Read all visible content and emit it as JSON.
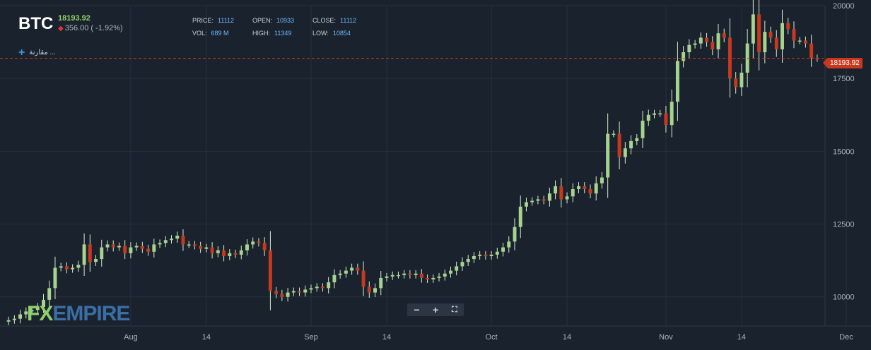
{
  "header": {
    "symbol": "BTC",
    "last_price": "18193.92",
    "change": "356.00 ( -1.92%)",
    "compare_label": "مقارنة ..."
  },
  "stats": [
    {
      "key": "PRICE:",
      "value": "11112"
    },
    {
      "key": "OPEN:",
      "value": "10933"
    },
    {
      "key": "CLOSE:",
      "value": "11112"
    },
    {
      "key": "VOL:",
      "value": "689 M"
    },
    {
      "key": "HIGH:",
      "value": "11349"
    },
    {
      "key": "LOW:",
      "value": "10854"
    }
  ],
  "price_tag": "18193.92",
  "logo": {
    "fx": "FX",
    "empire": "EMPIRE"
  },
  "controls": {
    "zoom_out": "−",
    "zoom_in": "+",
    "fullscreen": "⛶"
  },
  "colors": {
    "up": "#a6d48f",
    "down": "#c8381f",
    "bg": "#1a232d",
    "grid": "#26313c",
    "last_line": "#c8381f"
  },
  "chart_data": {
    "type": "candlestick",
    "ylim": [
      9000,
      20000
    ],
    "yticks": [
      10000,
      12500,
      15000,
      17500,
      20000
    ],
    "xticks": [
      "Aug",
      "14",
      "Sep",
      "14",
      "Oct",
      "14",
      "Nov",
      "14",
      "Dec"
    ],
    "xtick_indices": [
      21,
      34,
      52,
      65,
      83,
      96,
      113,
      126,
      144
    ],
    "last_price": 18193.92,
    "grid": true,
    "close": [
      9200,
      9250,
      9400,
      9500,
      9550,
      9650,
      9900,
      10300,
      11000,
      11050,
      10950,
      11000,
      11100,
      11800,
      11200,
      11300,
      11700,
      11800,
      11700,
      11750,
      11500,
      11700,
      11750,
      11650,
      11550,
      11800,
      11850,
      11950,
      12000,
      12100,
      11800,
      11800,
      11750,
      11650,
      11700,
      11500,
      11600,
      11400,
      11500,
      11450,
      11600,
      11800,
      11900,
      11850,
      11600,
      10200,
      10100,
      10000,
      10150,
      10200,
      10150,
      10250,
      10300,
      10350,
      10300,
      10500,
      10750,
      10800,
      10900,
      11000,
      10900,
      10350,
      10150,
      10300,
      10650,
      10700,
      10750,
      10750,
      10800,
      10750,
      10800,
      10650,
      10600,
      10650,
      10700,
      10800,
      10900,
      11050,
      11200,
      11300,
      11400,
      11450,
      11400,
      11450,
      11550,
      11700,
      11900,
      12400,
      13100,
      13250,
      13300,
      13350,
      13300,
      13550,
      13800,
      13350,
      13450,
      13700,
      13800,
      13700,
      13550,
      13900,
      14100,
      15600,
      15600,
      14800,
      15100,
      15350,
      15450,
      16050,
      16250,
      16300,
      16300,
      15900,
      16700,
      18100,
      18400,
      18650,
      18700,
      18900,
      18750,
      18500,
      19050,
      18900,
      17500,
      17200,
      17700,
      18700,
      19700,
      18400,
      19100,
      18900,
      18500,
      19400,
      19200,
      18800,
      18800,
      18700,
      18200,
      18190
    ],
    "open": [
      9150,
      9200,
      9250,
      9400,
      9500,
      9550,
      9650,
      9900,
      10300,
      11000,
      11050,
      10950,
      11000,
      11100,
      11800,
      11200,
      11300,
      11700,
      11800,
      11700,
      11750,
      11500,
      11700,
      11750,
      11650,
      11550,
      11800,
      11850,
      11950,
      12000,
      12100,
      11800,
      11800,
      11750,
      11650,
      11700,
      11500,
      11600,
      11400,
      11500,
      11450,
      11600,
      11800,
      11900,
      11850,
      11600,
      10200,
      10100,
      10000,
      10150,
      10200,
      10150,
      10250,
      10300,
      10350,
      10300,
      10500,
      10750,
      10800,
      10900,
      11000,
      10900,
      10350,
      10150,
      10300,
      10650,
      10700,
      10750,
      10750,
      10800,
      10750,
      10800,
      10650,
      10600,
      10650,
      10700,
      10800,
      10900,
      11050,
      11200,
      11300,
      11400,
      11450,
      11400,
      11450,
      11550,
      11700,
      11900,
      12400,
      13100,
      13250,
      13300,
      13350,
      13300,
      13550,
      13800,
      13350,
      13450,
      13700,
      13800,
      13700,
      13550,
      13900,
      14100,
      15600,
      15600,
      14800,
      15100,
      15350,
      15450,
      16050,
      16250,
      16300,
      16300,
      15900,
      16700,
      18100,
      18400,
      18650,
      18700,
      18900,
      18750,
      18500,
      19050,
      18900,
      17500,
      17200,
      17700,
      18700,
      19700,
      18400,
      19100,
      18900,
      18500,
      19400,
      19200,
      18800,
      18800,
      18700,
      18200
    ]
  }
}
